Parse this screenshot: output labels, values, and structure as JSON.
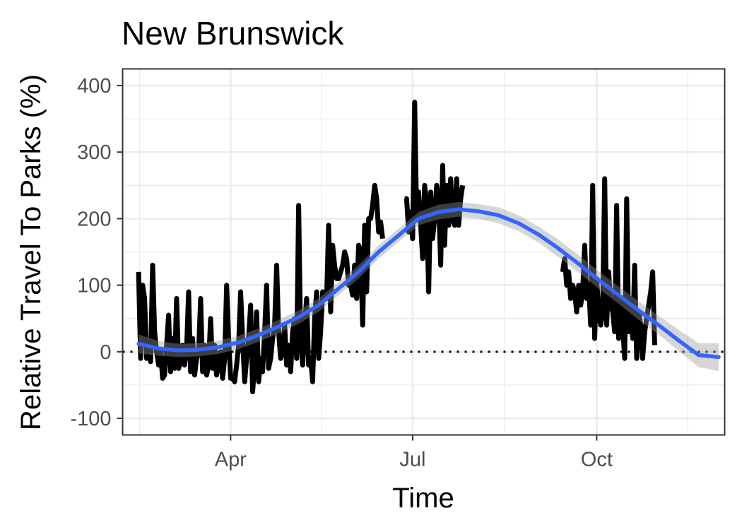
{
  "chart_data": {
    "type": "line",
    "title": "New Brunswick",
    "xlabel": "Time",
    "ylabel": "Relative Travel To Parks (%)",
    "xlim": [
      "2020-02-07",
      "2020-12-04"
    ],
    "ylim": [
      -125,
      425
    ],
    "x_ticks": [
      {
        "date": "2020-04-01",
        "label": "Apr"
      },
      {
        "date": "2020-07-01",
        "label": "Jul"
      },
      {
        "date": "2020-10-01",
        "label": "Oct"
      }
    ],
    "y_ticks": [
      -100,
      0,
      100,
      200,
      300,
      400
    ],
    "grid": true,
    "reference_line": {
      "y": 0,
      "style": "dotted",
      "color": "#000000"
    },
    "colors": {
      "line": "#000000",
      "smooth": "#3366ff",
      "ribbon": "#999999",
      "panel_border": "#333333",
      "grid": "#ebebeb"
    },
    "series": [
      {
        "type": "line",
        "segments": [
          {
            "start": "2020-02-15",
            "values": [
              120,
              -10,
              100,
              80,
              -10,
              15,
              -15,
              130,
              30,
              0,
              -20,
              0,
              -40,
              -35,
              10,
              55,
              -30,
              20,
              -25,
              80,
              -25,
              -15,
              10,
              -20,
              5,
              90,
              -30,
              20,
              -35,
              -10,
              0,
              80,
              -30,
              10,
              -35,
              -20,
              50,
              -25,
              10,
              -35,
              -20,
              0,
              -40,
              -10,
              100,
              20,
              -40,
              -40,
              -45,
              -20,
              10,
              90,
              20,
              -45,
              -10,
              20,
              70,
              -60,
              -20,
              60,
              -45,
              -10,
              -30,
              30,
              100,
              -25,
              -10,
              20,
              40,
              130,
              30,
              -10,
              0,
              40,
              -20,
              10,
              -30,
              30,
              50,
              -10,
              220,
              20,
              -20,
              40,
              80,
              -20,
              -10,
              -45,
              50,
              90,
              -10,
              30,
              90,
              80,
              80,
              190,
              60,
              160,
              130,
              110,
              110,
              120,
              130,
              150,
              140,
              100,
              100,
              85,
              130,
              80,
              160,
              150,
              40,
              190,
              90,
              200,
              200,
              220,
              250,
              230,
              180,
              195,
              170
            ]
          },
          {
            "start": "2020-06-27",
            "values": [
              230,
              230,
              180,
              210,
              170,
              375,
              200,
              240,
              190,
              140,
              250,
              220,
              90,
              240,
              170,
              200,
              250,
              230,
              130,
              280,
              160,
              250,
              190,
              260,
              200,
              190,
              260,
              190,
              230,
              250
            ]
          },
          {
            "start": "2020-09-14",
            "values": [
              120,
              140,
              100,
              120,
              80,
              100,
              90,
              60,
              100,
              70,
              90,
              160,
              80,
              100,
              40,
              250,
              20,
              110,
              60,
              40,
              60,
              260,
              40,
              120,
              70,
              60,
              30,
              220,
              20,
              80,
              40,
              -10,
              230,
              30,
              80,
              20,
              130,
              -10,
              60,
              40,
              -10,
              30,
              50,
              70,
              90,
              120,
              10
            ]
          }
        ]
      },
      {
        "type": "smooth",
        "x": [
          "2020-02-15",
          "2020-02-25",
          "2020-03-06",
          "2020-03-16",
          "2020-03-26",
          "2020-04-05",
          "2020-04-15",
          "2020-04-25",
          "2020-05-05",
          "2020-05-15",
          "2020-05-25",
          "2020-06-04",
          "2020-06-14",
          "2020-06-24",
          "2020-07-04",
          "2020-07-14",
          "2020-07-24",
          "2020-08-03",
          "2020-08-13",
          "2020-08-23",
          "2020-09-02",
          "2020-09-12",
          "2020-09-22",
          "2020-10-02",
          "2020-10-12",
          "2020-10-22",
          "2020-11-01",
          "2020-11-11",
          "2020-11-21",
          "2020-12-01"
        ],
        "values": [
          12,
          5,
          2,
          3,
          7,
          14,
          25,
          38,
          52,
          70,
          95,
          120,
          150,
          175,
          200,
          210,
          214,
          211,
          205,
          193,
          176,
          155,
          132,
          108,
          85,
          62,
          40,
          17,
          -5,
          -8
        ],
        "ci_halfwidth": [
          14,
          11,
          10,
          10,
          10,
          10,
          10,
          10,
          10,
          10,
          10,
          10,
          10,
          10,
          10,
          11,
          11,
          11,
          12,
          12,
          12,
          13,
          13,
          13,
          13,
          14,
          14,
          16,
          18,
          21
        ]
      }
    ]
  }
}
